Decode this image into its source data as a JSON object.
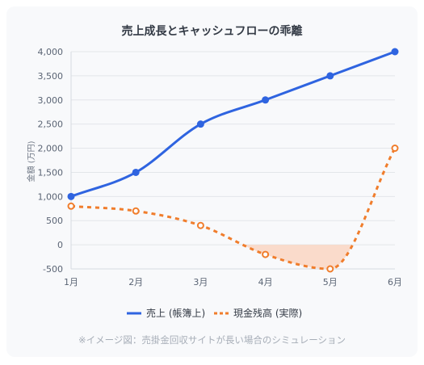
{
  "chart_data": {
    "type": "line",
    "title": "売上成長とキャッシュフローの乖離",
    "categories": [
      "1月",
      "2月",
      "3月",
      "4月",
      "5月",
      "6月"
    ],
    "ylabel": "金額 (万円)",
    "ylim": [
      -500,
      4000
    ],
    "yticks": [
      -500,
      0,
      500,
      1000,
      1500,
      2000,
      2500,
      3000,
      3500,
      4000
    ],
    "ytick_labels": [
      "-500",
      "0",
      "500",
      "1,000",
      "1,500",
      "2,000",
      "2,500",
      "3,000",
      "3,500",
      "4,000"
    ],
    "grid": true,
    "legend_position": "bottom",
    "series": [
      {
        "name": "売上 (帳簿上)",
        "values": [
          1000,
          1500,
          2500,
          3000,
          3500,
          4000
        ],
        "color": "#2f64e0",
        "style": "solid",
        "marker": "filled-circle"
      },
      {
        "name": "現金残高 (実際)",
        "values": [
          800,
          700,
          400,
          -200,
          -500,
          2000
        ],
        "color": "#f07d2c",
        "style": "dashed",
        "marker": "hollow-circle",
        "negative_fill": "#fad6c2"
      }
    ]
  },
  "footnote": "※イメージ図：売掛金回収サイトが長い場合のシミュレーション"
}
